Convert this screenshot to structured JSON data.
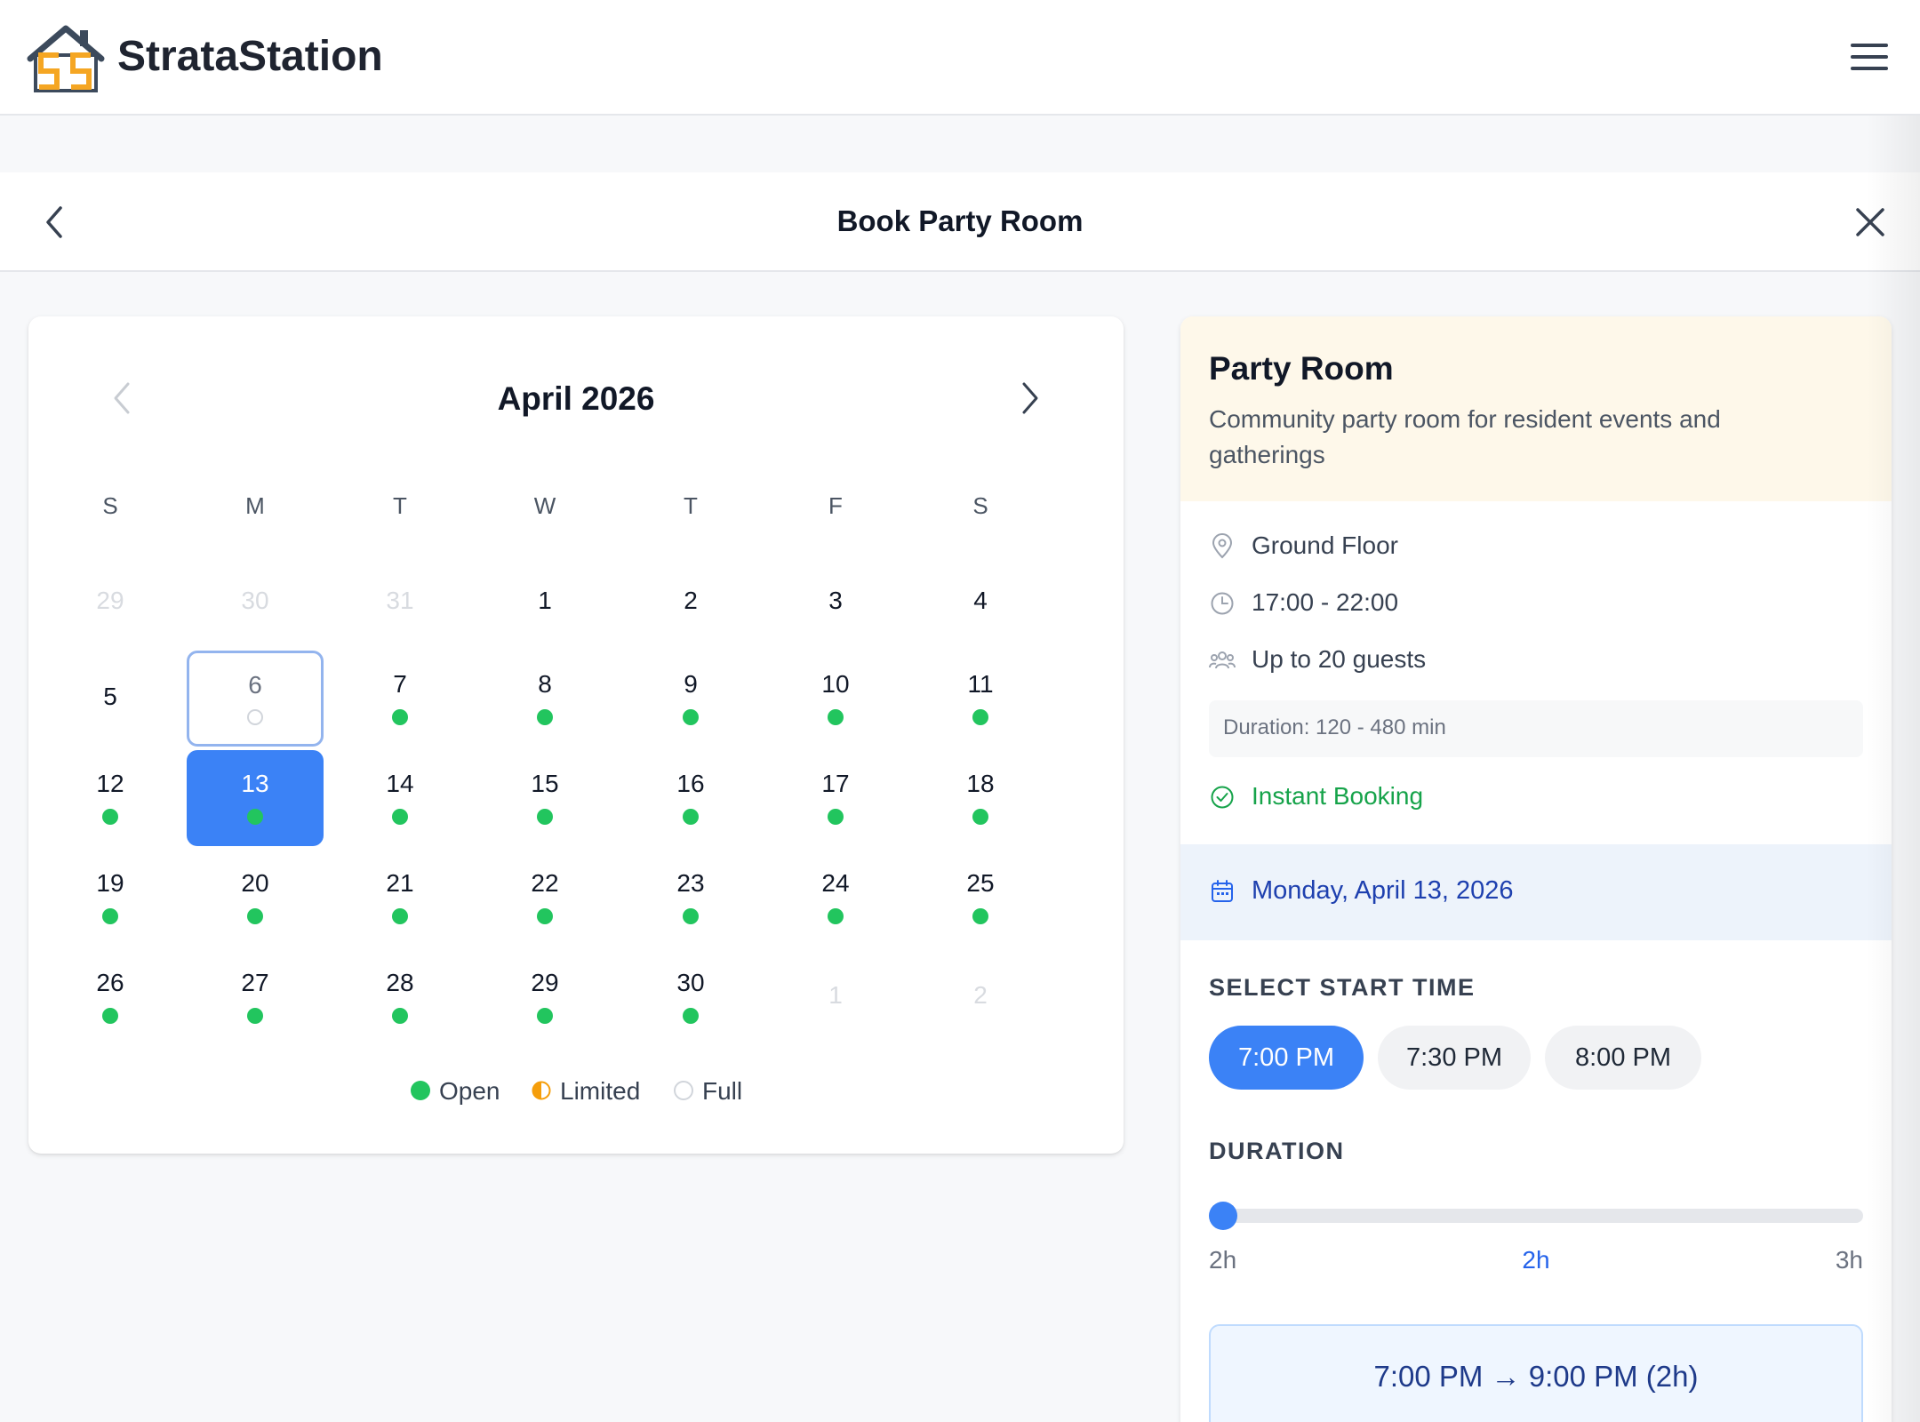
{
  "app": {
    "brand": "StrataStation"
  },
  "modal": {
    "title": "Book Party Room"
  },
  "calendar": {
    "month_label": "April 2026",
    "weekdays": [
      "S",
      "M",
      "T",
      "W",
      "T",
      "F",
      "S"
    ],
    "weeks": [
      [
        {
          "n": "29",
          "out": true
        },
        {
          "n": "30",
          "out": true
        },
        {
          "n": "31",
          "out": true
        },
        {
          "n": "1"
        },
        {
          "n": "2"
        },
        {
          "n": "3"
        },
        {
          "n": "4"
        }
      ],
      [
        {
          "n": "5"
        },
        {
          "n": "6",
          "today": true,
          "status": "full"
        },
        {
          "n": "7",
          "status": "open"
        },
        {
          "n": "8",
          "status": "open"
        },
        {
          "n": "9",
          "status": "open"
        },
        {
          "n": "10",
          "status": "open"
        },
        {
          "n": "11",
          "status": "open"
        }
      ],
      [
        {
          "n": "12",
          "status": "open"
        },
        {
          "n": "13",
          "selected": true,
          "status": "open"
        },
        {
          "n": "14",
          "status": "open"
        },
        {
          "n": "15",
          "status": "open"
        },
        {
          "n": "16",
          "status": "open"
        },
        {
          "n": "17",
          "status": "open"
        },
        {
          "n": "18",
          "status": "open"
        }
      ],
      [
        {
          "n": "19",
          "status": "open"
        },
        {
          "n": "20",
          "status": "open"
        },
        {
          "n": "21",
          "status": "open"
        },
        {
          "n": "22",
          "status": "open"
        },
        {
          "n": "23",
          "status": "open"
        },
        {
          "n": "24",
          "status": "open"
        },
        {
          "n": "25",
          "status": "open"
        }
      ],
      [
        {
          "n": "26",
          "status": "open"
        },
        {
          "n": "27",
          "status": "open"
        },
        {
          "n": "28",
          "status": "open"
        },
        {
          "n": "29",
          "status": "open"
        },
        {
          "n": "30",
          "status": "open"
        },
        {
          "n": "1",
          "out": true
        },
        {
          "n": "2",
          "out": true
        }
      ]
    ],
    "legend": {
      "open": "Open",
      "limited": "Limited",
      "full": "Full"
    }
  },
  "room": {
    "name": "Party Room",
    "description": "Community party room for resident events and gatherings",
    "location": "Ground Floor",
    "hours": "17:00 - 22:00",
    "capacity": "Up to 20 guests",
    "duration_rule": "Duration: 120 - 480 min",
    "booking_type": "Instant Booking"
  },
  "selected_date": "Monday, April 13, 2026",
  "start_time": {
    "label": "SELECT START TIME",
    "slots": [
      "7:00 PM",
      "7:30 PM",
      "8:00 PM"
    ],
    "selected_index": 0
  },
  "duration": {
    "label": "DURATION",
    "min_label": "2h",
    "value_label": "2h",
    "max_label": "3h",
    "value_fraction": 0
  },
  "summary": "7:00 PM → 9:00 PM (2h)",
  "colors": {
    "accent": "#3b82f6",
    "open": "#22c55e",
    "limited": "#f59e0b",
    "success": "#16a34a",
    "brand_orange": "#f5a623"
  },
  "icons": {
    "logo": "house-logo-icon",
    "menu": "hamburger-menu-icon",
    "back": "chevron-left-icon",
    "close": "close-icon",
    "location": "map-pin-icon",
    "hours": "clock-icon",
    "capacity": "users-icon",
    "instant": "check-circle-icon",
    "date": "calendar-icon"
  }
}
